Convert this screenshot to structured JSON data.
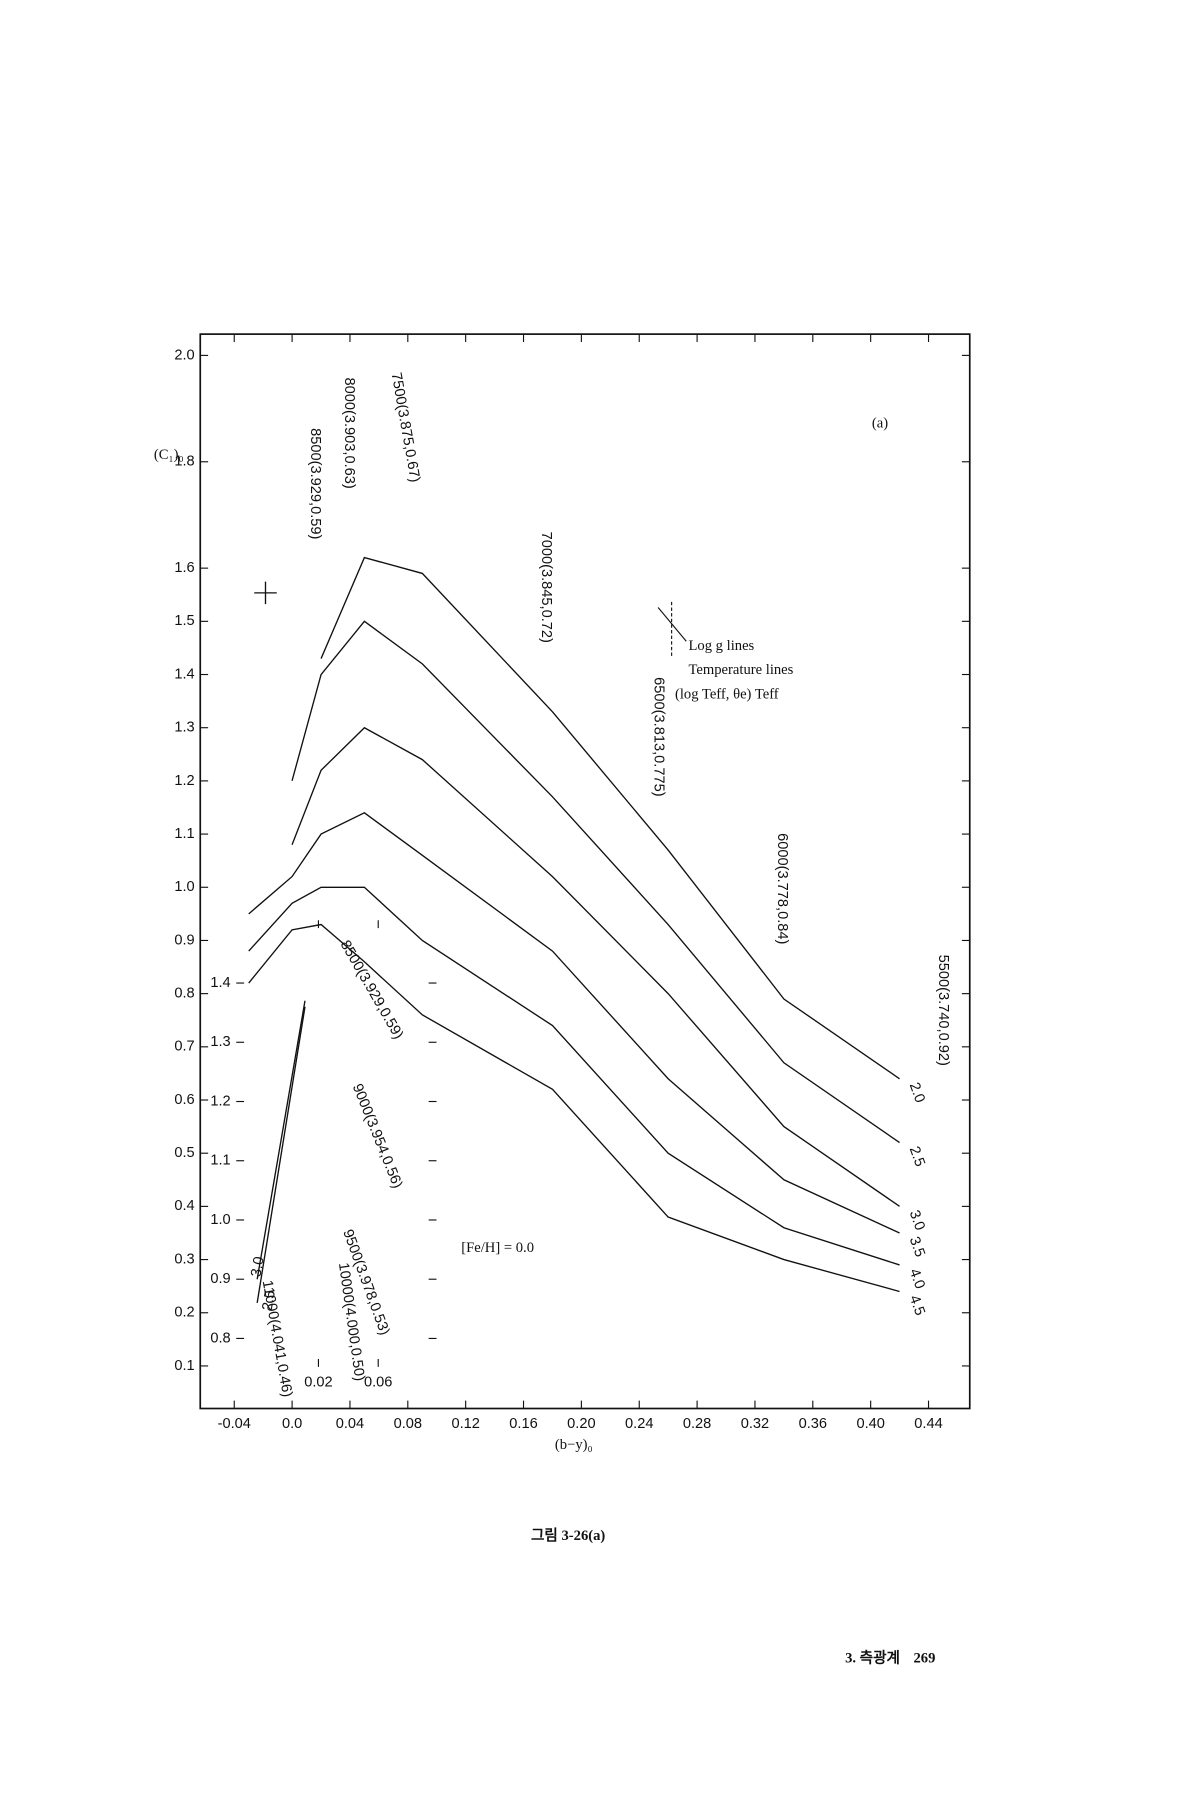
{
  "page": {
    "caption": "그림 3-26(a)",
    "footer_section": "3. 측광계",
    "footer_page": "269"
  },
  "chart_data": [
    {
      "type": "line",
      "panel_label": "(a)",
      "xlabel": "(b−y)₀",
      "ylabel": "(C₁)₀",
      "x": [
        -0.03,
        0.0,
        0.02,
        0.05,
        0.09,
        0.18,
        0.26,
        0.34,
        0.42
      ],
      "series": [
        {
          "name": "2.0",
          "color": "#111111",
          "values": [
            null,
            null,
            1.43,
            1.62,
            1.59,
            1.33,
            1.07,
            0.79,
            0.64
          ]
        },
        {
          "name": "2.5",
          "color": "#111111",
          "values": [
            null,
            1.2,
            1.4,
            1.5,
            1.42,
            1.17,
            0.93,
            0.67,
            0.52
          ]
        },
        {
          "name": "3.0",
          "color": "#111111",
          "values": [
            null,
            1.08,
            1.22,
            1.3,
            1.24,
            1.02,
            0.8,
            0.55,
            0.4
          ]
        },
        {
          "name": "3.5",
          "color": "#111111",
          "values": [
            0.95,
            1.02,
            1.1,
            1.14,
            1.06,
            0.88,
            0.64,
            0.45,
            0.35
          ]
        },
        {
          "name": "4.0",
          "color": "#111111",
          "values": [
            0.88,
            0.97,
            1.0,
            1.0,
            0.9,
            0.74,
            0.5,
            0.36,
            0.29
          ]
        },
        {
          "name": "4.5",
          "color": "#111111",
          "values": [
            0.82,
            0.92,
            0.93,
            0.86,
            0.76,
            0.62,
            0.38,
            0.3,
            0.24
          ]
        }
      ],
      "xlim": [
        -0.0635,
        0.4685
      ],
      "ylim": [
        0.02,
        2.04
      ],
      "xticks": [
        -0.04,
        {
          "value": 0,
          "label": "0.0"
        },
        0.04,
        0.08,
        0.12,
        0.16,
        {
          "value": 0.2,
          "label": "0.20"
        },
        0.24,
        0.28,
        0.32,
        0.36,
        {
          "value": 0.4,
          "label": "0.40"
        },
        0.44
      ],
      "yticks": [
        0.1,
        0.2,
        0.3,
        0.4,
        0.5,
        0.6,
        0.7,
        0.8,
        0.9,
        {
          "value": 1,
          "label": "1.0"
        },
        1.1,
        1.2,
        1.3,
        1.4,
        1.5,
        1.6,
        1.8,
        {
          "value": 2,
          "label": "2.0"
        }
      ],
      "annotations": [
        "8500(3.929,0.59)",
        "8000(3.903,0.63)",
        "7500(3.875,0.67)",
        "7000(3.845,0.72)",
        "6500(3.813,0.775)",
        "6000(3.778,0.84)",
        "5500(3.740,0.92)"
      ],
      "legend_texts": [
        "Log g lines",
        "Temperature lines",
        "(log Teff, θe) Teff"
      ],
      "note": "[Fe/H] = 0.0"
    },
    {
      "type": "line",
      "x": [
        -0.021,
        0.011
      ],
      "series": [
        {
          "name": "3.0",
          "color": "#111111",
          "values": [
            0.9,
            1.37
          ]
        },
        {
          "name": "2.5",
          "color": "#111111",
          "values": [
            0.86,
            1.36
          ]
        }
      ],
      "xlim": [
        -0.035,
        0.099
      ],
      "ylim": [
        0.752,
        1.506
      ],
      "xticks": [
        0.02,
        0.06
      ],
      "yticks": [
        0.8,
        0.9,
        {
          "value": 1,
          "label": "1.0"
        },
        1.1,
        1.2,
        1.3,
        1.4
      ],
      "annotations": [
        "8500(3.929,0.59)",
        "9000(3.954,0.56)",
        "9500(3.978,0.53)",
        "10000(4.000,0.50)",
        "11000(4.041,0.46)"
      ]
    }
  ]
}
